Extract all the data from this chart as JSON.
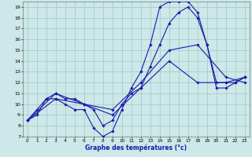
{
  "xlabel": "Graphe des températures (°c)",
  "bg_color": "#cce8e8",
  "grid_color": "#aacccc",
  "line_color": "#1a1aaa",
  "xlim": [
    -0.5,
    23.5
  ],
  "ylim": [
    7,
    19.5
  ],
  "yticks": [
    7,
    8,
    9,
    10,
    11,
    12,
    13,
    14,
    15,
    16,
    17,
    18,
    19
  ],
  "xticks": [
    0,
    1,
    2,
    3,
    4,
    5,
    6,
    7,
    8,
    9,
    10,
    11,
    12,
    13,
    14,
    15,
    16,
    17,
    18,
    19,
    20,
    21,
    22,
    23
  ],
  "series": [
    {
      "x": [
        0,
        1,
        2,
        3,
        4,
        5,
        6,
        7,
        8,
        9,
        10,
        11,
        12,
        13,
        14,
        15,
        16,
        17,
        18,
        19,
        20,
        21,
        22,
        23
      ],
      "y": [
        8.5,
        9.5,
        10.5,
        10.5,
        10.0,
        9.5,
        9.5,
        7.8,
        7.0,
        7.5,
        9.5,
        11.5,
        13.0,
        15.5,
        19.0,
        19.5,
        19.5,
        19.5,
        18.5,
        15.5,
        12.0,
        12.0,
        12.0,
        12.5
      ]
    },
    {
      "x": [
        0,
        1,
        2,
        3,
        4,
        5,
        6,
        7,
        8,
        9,
        10,
        11,
        12,
        13,
        14,
        15,
        16,
        17,
        18,
        19,
        20,
        21,
        22,
        23
      ],
      "y": [
        8.5,
        9.0,
        10.5,
        11.0,
        10.5,
        10.5,
        10.0,
        9.5,
        8.0,
        8.5,
        10.0,
        11.0,
        11.5,
        13.5,
        15.5,
        17.5,
        18.5,
        19.0,
        18.0,
        15.5,
        11.5,
        11.5,
        12.0,
        12.5
      ]
    },
    {
      "x": [
        0,
        3,
        6,
        9,
        12,
        15,
        18,
        21,
        23
      ],
      "y": [
        8.5,
        10.5,
        10.0,
        9.5,
        12.0,
        15.0,
        15.5,
        12.5,
        12.0
      ]
    },
    {
      "x": [
        0,
        3,
        6,
        9,
        12,
        15,
        18,
        21,
        23
      ],
      "y": [
        8.5,
        11.0,
        10.0,
        9.0,
        11.5,
        14.0,
        12.0,
        12.0,
        12.5
      ]
    }
  ]
}
